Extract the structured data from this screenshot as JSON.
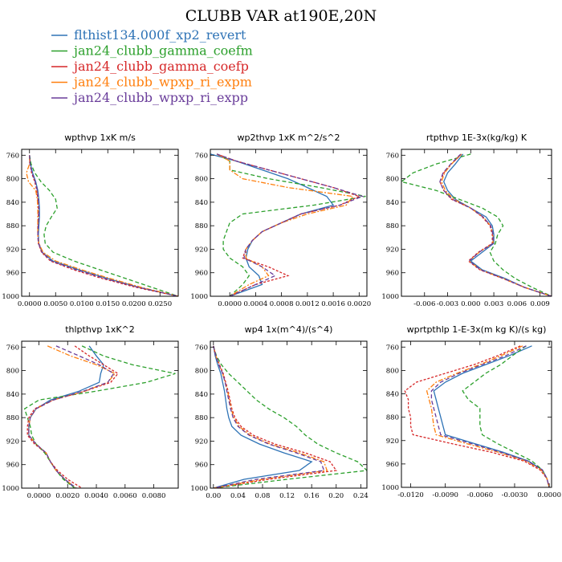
{
  "title": "CLUBB VAR at190E,20N",
  "legend": [
    {
      "label": "flthist134.000f_xp2_revert",
      "color": "#2e73b6",
      "dash": ""
    },
    {
      "label": "jan24_clubb_gamma_coefm",
      "color": "#2ca02c",
      "dash": "5,3"
    },
    {
      "label": "jan24_clubb_gamma_coefp",
      "color": "#d62728",
      "dash": "3,2"
    },
    {
      "label": "jan24_clubb_wpxp_ri_expm",
      "color": "#ff7f0e",
      "dash": "6,2,2,2"
    },
    {
      "label": "jan24_clubb_wpxp_ri_expp",
      "color": "#6a3d9a",
      "dash": "5,3"
    }
  ],
  "chart_data": [
    {
      "type": "line",
      "title": "wpthvp  1xK m/s",
      "xlim": [
        -0.0015,
        0.0285
      ],
      "ylim": [
        750,
        1000
      ],
      "xticks": [
        0.0,
        0.005,
        0.01,
        0.015,
        0.02,
        0.025
      ],
      "xtick_labels": [
        "0.0000",
        "0.0050",
        "0.0100",
        "0.0150",
        "0.0200",
        "0.0250"
      ],
      "yticks": [
        760,
        800,
        840,
        880,
        920,
        960,
        1000
      ],
      "y": [
        760,
        775,
        790,
        805,
        820,
        835,
        850,
        865,
        880,
        895,
        910,
        925,
        940,
        955,
        970,
        985,
        1000
      ],
      "series": [
        {
          "name": "flthist134.000f_xp2_revert",
          "values": [
            0.0,
            0.0002,
            0.0006,
            0.0012,
            0.0016,
            0.0018,
            0.0019,
            0.0019,
            0.0018,
            0.0017,
            0.0018,
            0.0024,
            0.0045,
            0.0095,
            0.015,
            0.021,
            0.0285
          ]
        },
        {
          "name": "jan24_clubb_gamma_coefm",
          "values": [
            0.0,
            0.0003,
            0.001,
            0.0022,
            0.0038,
            0.005,
            0.0053,
            0.0042,
            0.0032,
            0.0028,
            0.003,
            0.0045,
            0.0085,
            0.0135,
            0.0185,
            0.0235,
            0.0285
          ]
        },
        {
          "name": "jan24_clubb_gamma_coefp",
          "values": [
            0.0,
            0.0001,
            0.0004,
            0.001,
            0.0014,
            0.0016,
            0.0017,
            0.0017,
            0.0016,
            0.0016,
            0.0017,
            0.0023,
            0.004,
            0.0085,
            0.014,
            0.0205,
            0.0285
          ]
        },
        {
          "name": "jan24_clubb_wpxp_ri_expm",
          "values": [
            0.0,
            0.0,
            -0.0006,
            -0.0002,
            0.0012,
            0.0015,
            0.0016,
            0.0016,
            0.0016,
            0.0016,
            0.0018,
            0.0026,
            0.005,
            0.01,
            0.0155,
            0.0215,
            0.0285
          ]
        },
        {
          "name": "jan24_clubb_wpxp_ri_expp",
          "values": [
            0.0,
            0.0001,
            0.0005,
            0.0011,
            0.0015,
            0.0017,
            0.0018,
            0.0018,
            0.0017,
            0.0016,
            0.0017,
            0.0024,
            0.0042,
            0.009,
            0.0145,
            0.021,
            0.0285
          ]
        }
      ]
    },
    {
      "type": "line",
      "title": "wp2thvp  1xK m^2/s^2",
      "xlim": [
        -0.0003,
        0.00212
      ],
      "ylim": [
        750,
        1000
      ],
      "xticks": [
        0.0,
        0.0004,
        0.0008,
        0.0012,
        0.0016,
        0.002
      ],
      "xtick_labels": [
        "0.0000",
        "0.0004",
        "0.0008",
        "0.0012",
        "0.0016",
        "0.0020"
      ],
      "yticks": [
        760,
        800,
        840,
        880,
        920,
        960,
        1000
      ],
      "y": [
        758,
        770,
        785,
        800,
        815,
        830,
        845,
        860,
        875,
        890,
        905,
        920,
        935,
        950,
        965,
        980,
        1000
      ],
      "series": [
        {
          "name": "flthist134.000f_xp2_revert",
          "values": [
            -0.0003,
            0.0001,
            0.0005,
            0.0009,
            0.0012,
            0.0015,
            0.0016,
            0.0011,
            0.0008,
            0.0005,
            0.00035,
            0.00028,
            0.00025,
            0.0003,
            0.00045,
            0.0005,
            0.0
          ]
        },
        {
          "name": "jan24_clubb_gamma_coefm",
          "values": [
            -0.0002,
            0.0,
            0.0,
            0.0006,
            0.0014,
            0.0021,
            0.0013,
            0.0002,
            0.0,
            -5e-05,
            -0.0001,
            -0.0001,
            0.0,
            0.0002,
            0.0003,
            0.0002,
            0.0
          ]
        },
        {
          "name": "jan24_clubb_gamma_coefp",
          "values": [
            -0.0002,
            0.0001,
            0.0006,
            0.0011,
            0.0016,
            0.002,
            0.0017,
            0.0011,
            0.0008,
            0.0005,
            0.00035,
            0.00025,
            0.0002,
            0.0006,
            0.0009,
            0.0004,
            0.0
          ]
        },
        {
          "name": "jan24_clubb_wpxp_ri_expm",
          "values": [
            -0.0002,
            0.0,
            0.0,
            0.0002,
            0.0009,
            0.0019,
            0.0018,
            0.0012,
            0.0008,
            0.0005,
            0.00035,
            0.00025,
            0.00025,
            0.0005,
            0.0006,
            0.0003,
            0.0
          ]
        },
        {
          "name": "jan24_clubb_wpxp_ri_expp",
          "values": [
            -0.0002,
            0.0001,
            0.0006,
            0.0011,
            0.0016,
            0.00205,
            0.0017,
            0.0011,
            0.0008,
            0.0005,
            0.00035,
            0.00025,
            0.00022,
            0.0005,
            0.0007,
            0.0004,
            0.0
          ]
        }
      ]
    },
    {
      "type": "line",
      "title": "rtpthvp  1E-3x(kg/kg) K",
      "xlim": [
        -0.009,
        0.0105
      ],
      "ylim": [
        750,
        1000
      ],
      "xticks": [
        -0.006,
        -0.003,
        0.0,
        0.003,
        0.006,
        0.009
      ],
      "xtick_labels": [
        "-0.006",
        "-0.003",
        "0.000",
        "0.003",
        "0.006",
        "0.009"
      ],
      "yticks": [
        760,
        800,
        840,
        880,
        920,
        960,
        1000
      ],
      "y": [
        758,
        775,
        790,
        805,
        820,
        835,
        850,
        865,
        880,
        895,
        910,
        925,
        940,
        955,
        970,
        985,
        1000
      ],
      "series": [
        {
          "name": "flthist134.000f_xp2_revert",
          "values": [
            -0.001,
            -0.002,
            -0.003,
            -0.0035,
            -0.003,
            -0.002,
            0.0,
            0.002,
            0.0028,
            0.003,
            0.003,
            0.0015,
            0.0,
            0.0015,
            0.0045,
            0.007,
            0.0105
          ]
        },
        {
          "name": "jan24_clubb_gamma_coefm",
          "values": [
            0.0,
            -0.0045,
            -0.0075,
            -0.009,
            -0.0045,
            -0.0015,
            0.0015,
            0.0035,
            0.0042,
            0.0035,
            0.0032,
            0.0025,
            0.003,
            0.0042,
            0.0058,
            0.008,
            0.0105
          ]
        },
        {
          "name": "jan24_clubb_gamma_coefp",
          "values": [
            -0.0012,
            -0.0025,
            -0.0035,
            -0.004,
            -0.0035,
            -0.0025,
            0.0,
            0.0015,
            0.0025,
            0.0028,
            0.0028,
            0.001,
            -0.0003,
            0.0012,
            0.0042,
            0.007,
            0.0105
          ]
        },
        {
          "name": "jan24_clubb_wpxp_ri_expm",
          "values": [
            -0.0012,
            -0.0025,
            -0.0034,
            -0.0038,
            -0.0033,
            -0.0022,
            0.0,
            0.0016,
            0.0026,
            0.0029,
            0.0029,
            0.0011,
            -0.0002,
            0.0013,
            0.0043,
            0.007,
            0.0105
          ]
        },
        {
          "name": "jan24_clubb_wpxp_ri_expp",
          "values": [
            -0.0013,
            -0.0026,
            -0.0036,
            -0.004,
            -0.0035,
            -0.0024,
            0.0,
            0.0016,
            0.0026,
            0.0029,
            0.0029,
            0.0011,
            -0.0002,
            0.0013,
            0.0043,
            0.007,
            0.0105
          ]
        }
      ]
    },
    {
      "type": "line",
      "title": "thlpthvp  1xK^2",
      "xlim": [
        -0.0012,
        0.0097
      ],
      "ylim": [
        750,
        1000
      ],
      "xticks": [
        0.0,
        0.002,
        0.004,
        0.006,
        0.008
      ],
      "xtick_labels": [
        "0.0000",
        "0.0020",
        "0.0040",
        "0.0060",
        "0.0080"
      ],
      "yticks": [
        760,
        800,
        840,
        880,
        920,
        960,
        1000
      ],
      "y": [
        758,
        775,
        790,
        805,
        820,
        835,
        850,
        865,
        880,
        895,
        910,
        925,
        940,
        955,
        970,
        985,
        1000
      ],
      "series": [
        {
          "name": "flthist134.000f_xp2_revert",
          "values": [
            0.0035,
            0.004,
            0.0045,
            0.0043,
            0.0042,
            0.0028,
            0.0008,
            -0.0002,
            -0.0006,
            -0.0007,
            -0.0007,
            -0.0002,
            0.0005,
            0.0008,
            0.0012,
            0.0018,
            0.0025
          ]
        },
        {
          "name": "jan24_clubb_gamma_coefm",
          "values": [
            0.003,
            0.0045,
            0.0065,
            0.0095,
            0.0075,
            0.004,
            0.0,
            -0.001,
            -0.0008,
            -0.0006,
            -0.0005,
            -0.0002,
            0.0004,
            0.0008,
            0.0012,
            0.0017,
            0.0025
          ]
        },
        {
          "name": "jan24_clubb_gamma_coefp",
          "values": [
            0.0025,
            0.0035,
            0.0045,
            0.0055,
            0.005,
            0.0032,
            0.001,
            -0.0003,
            -0.0007,
            -0.0008,
            -0.0008,
            -0.0003,
            0.0005,
            0.0008,
            0.0013,
            0.002,
            0.003
          ]
        },
        {
          "name": "jan24_clubb_wpxp_ri_expm",
          "values": [
            0.0006,
            0.0022,
            0.004,
            0.0053,
            0.0048,
            0.0032,
            0.001,
            -0.0002,
            -0.0006,
            -0.0007,
            -0.0007,
            -0.0002,
            0.0005,
            0.0008,
            0.0012,
            0.0018,
            0.0026
          ]
        },
        {
          "name": "jan24_clubb_wpxp_ri_expp",
          "values": [
            0.0012,
            0.0028,
            0.0042,
            0.0052,
            0.0048,
            0.0031,
            0.001,
            -0.0002,
            -0.0006,
            -0.0007,
            -0.0007,
            -0.0002,
            0.0005,
            0.0008,
            0.0012,
            0.0018,
            0.0026
          ]
        }
      ]
    },
    {
      "type": "line",
      "title": "wp4  1x(m^4)/(s^4)",
      "xlim": [
        -0.005,
        0.25
      ],
      "ylim": [
        750,
        1000
      ],
      "xticks": [
        0.0,
        0.04,
        0.08,
        0.12,
        0.16,
        0.2,
        0.24
      ],
      "xtick_labels": [
        "0.00",
        "0.04",
        "0.08",
        "0.12",
        "0.16",
        "0.20",
        "0.24"
      ],
      "yticks": [
        760,
        800,
        840,
        880,
        920,
        960,
        1000
      ],
      "y": [
        758,
        775,
        790,
        805,
        820,
        835,
        850,
        865,
        880,
        895,
        910,
        925,
        940,
        955,
        970,
        985,
        1000
      ],
      "series": [
        {
          "name": "flthist134.000f_xp2_revert",
          "values": [
            0.0,
            0.003,
            0.007,
            0.012,
            0.015,
            0.018,
            0.02,
            0.022,
            0.025,
            0.03,
            0.045,
            0.075,
            0.115,
            0.16,
            0.14,
            0.05,
            0.0
          ]
        },
        {
          "name": "jan24_clubb_gamma_coefm",
          "values": [
            0.0,
            0.005,
            0.013,
            0.025,
            0.04,
            0.055,
            0.07,
            0.09,
            0.115,
            0.135,
            0.15,
            0.17,
            0.2,
            0.235,
            0.25,
            0.12,
            0.0
          ]
        },
        {
          "name": "jan24_clubb_gamma_coefp",
          "values": [
            0.0,
            0.004,
            0.01,
            0.016,
            0.02,
            0.024,
            0.027,
            0.03,
            0.035,
            0.045,
            0.065,
            0.1,
            0.15,
            0.19,
            0.2,
            0.09,
            0.0
          ]
        },
        {
          "name": "jan24_clubb_wpxp_ri_expm",
          "values": [
            0.0,
            0.004,
            0.009,
            0.015,
            0.019,
            0.023,
            0.026,
            0.029,
            0.033,
            0.042,
            0.06,
            0.092,
            0.14,
            0.18,
            0.185,
            0.08,
            0.0
          ]
        },
        {
          "name": "jan24_clubb_wpxp_ri_expp",
          "values": [
            0.0,
            0.004,
            0.009,
            0.015,
            0.019,
            0.022,
            0.025,
            0.028,
            0.032,
            0.04,
            0.058,
            0.09,
            0.135,
            0.175,
            0.18,
            0.07,
            0.0
          ]
        }
      ]
    },
    {
      "type": "line",
      "title": "wprtpthlp  1-E-3x(m kg K)/(s kg)",
      "xlim": [
        -0.0128,
        0.0002
      ],
      "ylim": [
        750,
        1000
      ],
      "xticks": [
        -0.012,
        -0.009,
        -0.006,
        -0.003,
        0.0
      ],
      "xtick_labels": [
        "-0.0120",
        "-0.0090",
        "-0.0060",
        "-0.0030",
        "0.0000"
      ],
      "yticks": [
        760,
        800,
        840,
        880,
        920,
        960,
        1000
      ],
      "y": [
        758,
        775,
        790,
        805,
        820,
        835,
        850,
        865,
        880,
        895,
        910,
        925,
        940,
        955,
        970,
        985,
        1000
      ],
      "series": [
        {
          "name": "flthist134.000f_xp2_revert",
          "values": [
            -0.0015,
            -0.0035,
            -0.0055,
            -0.0075,
            -0.009,
            -0.01,
            -0.0098,
            -0.0096,
            -0.0094,
            -0.0092,
            -0.009,
            -0.0065,
            -0.004,
            -0.0018,
            -0.0006,
            -0.0002,
            0.0
          ]
        },
        {
          "name": "jan24_clubb_gamma_coefm",
          "values": [
            -0.002,
            -0.0032,
            -0.0042,
            -0.0055,
            -0.0065,
            -0.0075,
            -0.007,
            -0.006,
            -0.006,
            -0.006,
            -0.0058,
            -0.0045,
            -0.003,
            -0.0015,
            -0.0006,
            -0.0002,
            0.0
          ]
        },
        {
          "name": "jan24_clubb_gamma_coefp",
          "values": [
            -0.0025,
            -0.0045,
            -0.0065,
            -0.009,
            -0.0115,
            -0.0125,
            -0.0122,
            -0.0122,
            -0.012,
            -0.012,
            -0.0118,
            -0.0085,
            -0.005,
            -0.0022,
            -0.0008,
            -0.0002,
            0.0
          ]
        },
        {
          "name": "jan24_clubb_wpxp_ri_expm",
          "values": [
            -0.0023,
            -0.0042,
            -0.006,
            -0.008,
            -0.0098,
            -0.0106,
            -0.0104,
            -0.0102,
            -0.0101,
            -0.01,
            -0.0098,
            -0.0072,
            -0.0044,
            -0.002,
            -0.0007,
            -0.0002,
            0.0
          ]
        },
        {
          "name": "jan24_clubb_wpxp_ri_expp",
          "values": [
            -0.002,
            -0.0038,
            -0.0058,
            -0.0078,
            -0.0094,
            -0.0102,
            -0.0102,
            -0.01,
            -0.0098,
            -0.0096,
            -0.0094,
            -0.0068,
            -0.0042,
            -0.0019,
            -0.0006,
            -0.0002,
            0.0
          ]
        }
      ]
    }
  ]
}
